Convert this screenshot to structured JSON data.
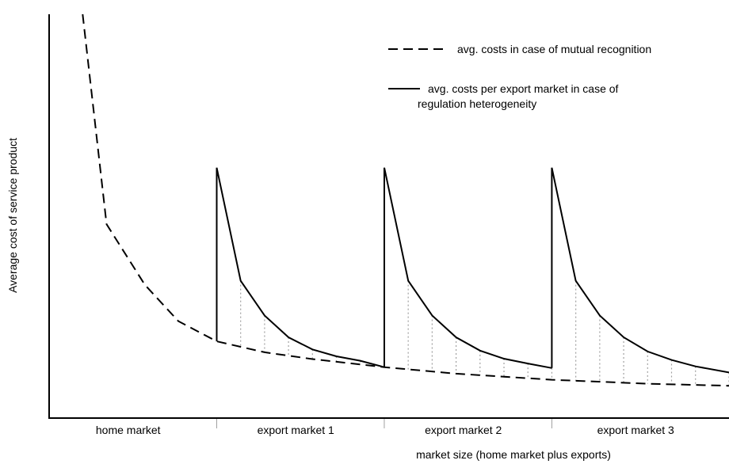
{
  "chart_data": {
    "type": "line",
    "title": "",
    "xlabel": "market size (home market plus exports)",
    "ylabel": "Average cost of service product",
    "xlim": [
      0,
      14.2
    ],
    "ylim": [
      0,
      1
    ],
    "grid": false,
    "legend_placement": "top-right",
    "categories": [
      "home market",
      "export market 1",
      "export market 2",
      "export market 3"
    ],
    "category_bounds": [
      0,
      3.5,
      7,
      10.5,
      14.2
    ],
    "series": [
      {
        "name": "avg. costs in case of  mutual recognition",
        "style": "dashed",
        "x": [
          0.7,
          1.2,
          2.0,
          2.7,
          3.5,
          4.5,
          5.5,
          7.0,
          8.5,
          10.5,
          12.5,
          14.2
        ],
        "y": [
          1.0,
          0.48,
          0.33,
          0.24,
          0.19,
          0.163,
          0.146,
          0.126,
          0.11,
          0.095,
          0.085,
          0.08
        ]
      },
      {
        "name": "avg. costs per export market in case of\nregulation heterogeneity",
        "style": "solid",
        "segments": [
          {
            "x": [
              3.5,
              3.5,
              4.0,
              4.5,
              5.0,
              5.5,
              6.0,
              6.5,
              7.0
            ],
            "y": [
              0.19,
              0.62,
              0.34,
              0.254,
              0.2,
              0.17,
              0.153,
              0.142,
              0.126
            ]
          },
          {
            "x": [
              7.0,
              7.0,
              7.5,
              8.0,
              8.5,
              9.0,
              9.5,
              10.0,
              10.5
            ],
            "y": [
              0.126,
              0.62,
              0.34,
              0.254,
              0.2,
              0.167,
              0.147,
              0.135,
              0.124
            ]
          },
          {
            "x": [
              10.5,
              10.5,
              11.0,
              11.5,
              12.0,
              12.5,
              13.0,
              13.5,
              14.2
            ],
            "y": [
              0.124,
              0.62,
              0.34,
              0.254,
              0.2,
              0.165,
              0.144,
              0.128,
              0.113
            ]
          }
        ]
      }
    ],
    "legend": [
      {
        "style": "dashed",
        "lines": [
          "avg. costs in case of  mutual recognition"
        ]
      },
      {
        "style": "solid",
        "lines": [
          "avg. costs per export market in case of",
          "regulation heterogeneity"
        ]
      }
    ],
    "colors": {
      "line": "#000000",
      "connector": "#a0a0a0"
    }
  }
}
